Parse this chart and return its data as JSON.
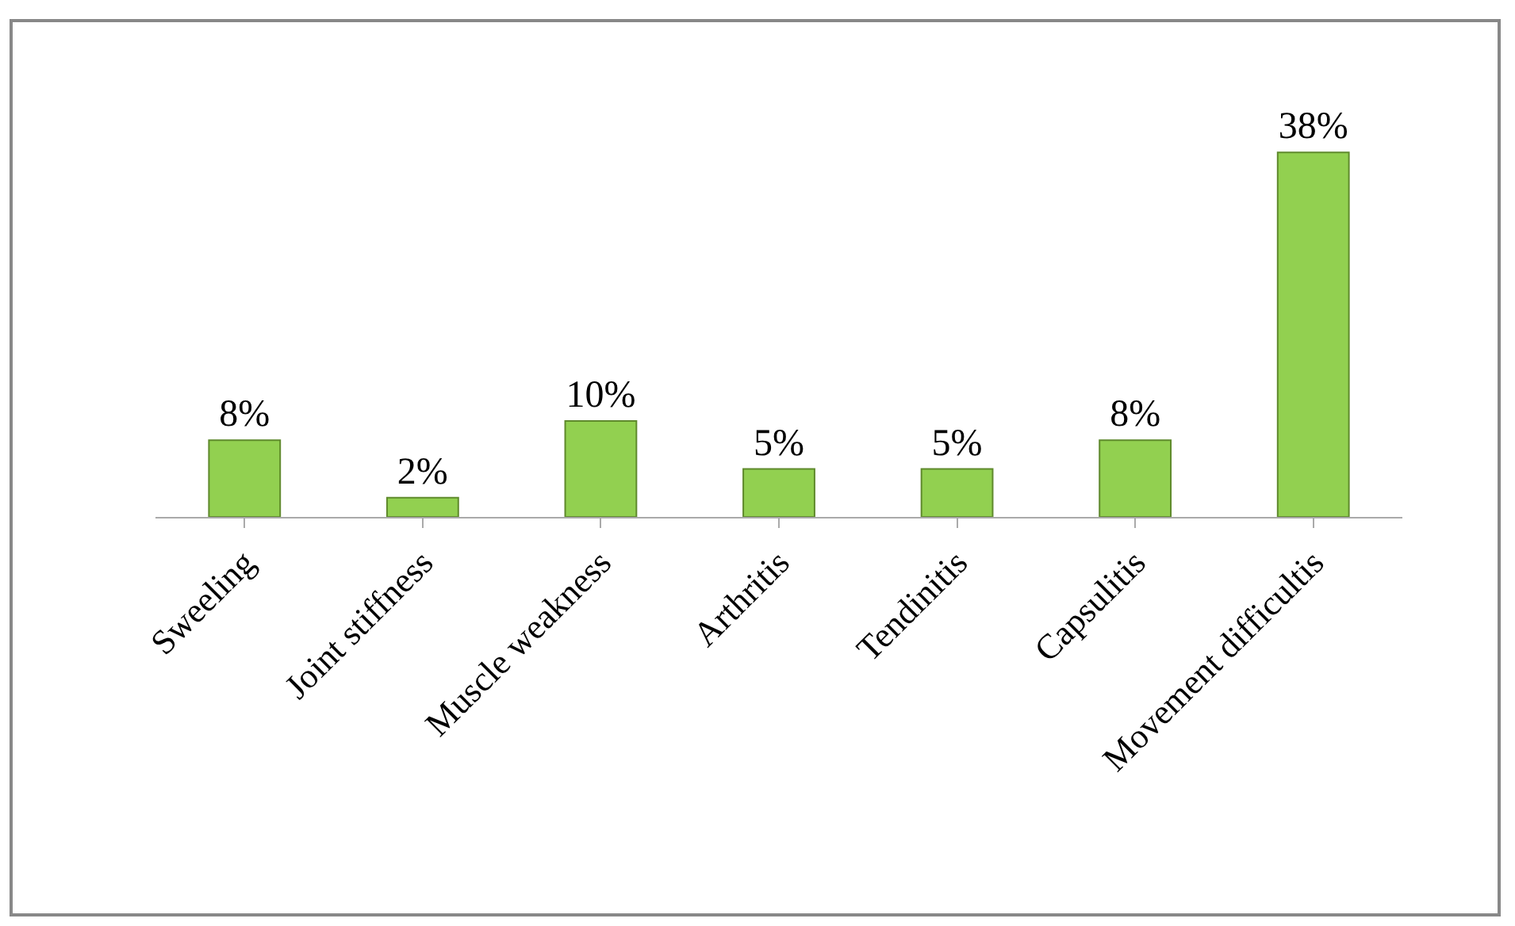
{
  "chart_data": {
    "type": "bar",
    "categories": [
      "Sweeling",
      "Joint stiffness",
      "Muscle weakness",
      "Arthritis",
      "Tendinitis",
      "Capsulitis",
      "Movement difficultis"
    ],
    "values": [
      8,
      2,
      10,
      5,
      5,
      8,
      38
    ],
    "value_labels": [
      "8%",
      "2%",
      "10%",
      "5%",
      "5%",
      "8%",
      "38%"
    ],
    "color": "#92d050"
  }
}
